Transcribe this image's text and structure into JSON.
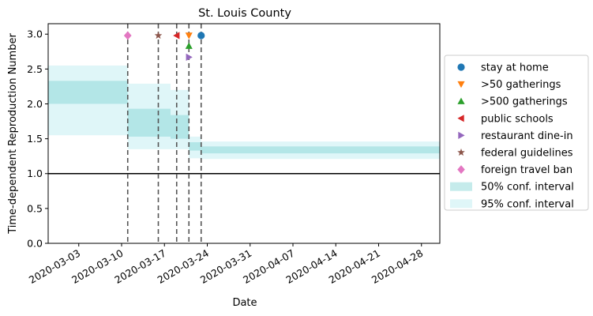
{
  "chart_data": {
    "type": "line",
    "title": "St. Louis County",
    "xlabel": "Date",
    "ylabel": "Time-dependent Reproduction Number",
    "x_range": [
      "2020-02-27",
      "2020-05-01"
    ],
    "ylim": [
      0.0,
      3.15
    ],
    "x_tick_labels": [
      "2020-03-03",
      "2020-03-10",
      "2020-03-17",
      "2020-03-24",
      "2020-03-31",
      "2020-04-07",
      "2020-04-14",
      "2020-04-21",
      "2020-04-28"
    ],
    "y_tick_labels": [
      "0.0",
      "0.5",
      "1.0",
      "1.5",
      "2.0",
      "2.5",
      "3.0"
    ],
    "y_ticks": [
      0.0,
      0.5,
      1.0,
      1.5,
      2.0,
      2.5,
      3.0
    ],
    "reference_line": {
      "y": 1.0,
      "color": "#000000"
    },
    "intervals": [
      {
        "start": "2020-02-27",
        "end": "2020-03-11",
        "ci50": [
          2.0,
          2.33
        ],
        "ci95": [
          1.55,
          2.55
        ]
      },
      {
        "start": "2020-03-11",
        "end": "2020-03-18",
        "ci50": [
          1.53,
          1.93
        ],
        "ci95": [
          1.35,
          2.29
        ]
      },
      {
        "start": "2020-03-18",
        "end": "2020-03-21",
        "ci50": [
          1.5,
          1.84
        ],
        "ci95": [
          1.35,
          2.2
        ]
      },
      {
        "start": "2020-03-21",
        "end": "2020-03-23",
        "ci50": [
          1.33,
          1.45
        ],
        "ci95": [
          1.22,
          1.53
        ]
      },
      {
        "start": "2020-03-23",
        "end": "2020-05-01",
        "ci50": [
          1.29,
          1.39
        ],
        "ci95": [
          1.21,
          1.46
        ]
      }
    ],
    "band_colors": {
      "ci50": "#7fd3d3",
      "ci95": "#b9ecef"
    },
    "interventions": [
      {
        "name": "stay at home",
        "date": "2020-03-23",
        "y": 2.98,
        "marker": "circle",
        "color": "#1f77b4"
      },
      {
        "name": ">50 gatherings",
        "date": "2020-03-21",
        "y": 2.98,
        "marker": "triangle-down",
        "color": "#ff7f0e"
      },
      {
        "name": ">500 gatherings",
        "date": "2020-03-21",
        "y": 2.83,
        "marker": "triangle-up",
        "color": "#2ca02c"
      },
      {
        "name": "public schools",
        "date": "2020-03-19",
        "y": 2.98,
        "marker": "triangle-left",
        "color": "#d62728"
      },
      {
        "name": "restaurant dine-in",
        "date": "2020-03-21",
        "y": 2.67,
        "marker": "triangle-right",
        "color": "#9467bd"
      },
      {
        "name": "federal guidelines",
        "date": "2020-03-16",
        "y": 2.98,
        "marker": "star",
        "color": "#8c564b"
      },
      {
        "name": "foreign travel ban",
        "date": "2020-03-11",
        "y": 2.98,
        "marker": "diamond",
        "color": "#e377c2"
      }
    ],
    "vertical_lines": [
      "2020-03-11",
      "2020-03-16",
      "2020-03-19",
      "2020-03-21",
      "2020-03-23"
    ],
    "legend": {
      "placement": "right",
      "entries": [
        {
          "label": "stay at home",
          "kind": "marker",
          "marker": "circle",
          "color": "#1f77b4"
        },
        {
          "label": ">50 gatherings",
          "kind": "marker",
          "marker": "triangle-down",
          "color": "#ff7f0e"
        },
        {
          "label": ">500 gatherings",
          "kind": "marker",
          "marker": "triangle-up",
          "color": "#2ca02c"
        },
        {
          "label": "public schools",
          "kind": "marker",
          "marker": "triangle-left",
          "color": "#d62728"
        },
        {
          "label": "restaurant dine-in",
          "kind": "marker",
          "marker": "triangle-right",
          "color": "#9467bd"
        },
        {
          "label": "federal guidelines",
          "kind": "marker",
          "marker": "star",
          "color": "#8c564b"
        },
        {
          "label": "foreign travel ban",
          "kind": "marker",
          "marker": "diamond",
          "color": "#e377c2"
        },
        {
          "label": "50% conf. interval",
          "kind": "patch",
          "color": "#7fd3d3"
        },
        {
          "label": "95% conf. interval",
          "kind": "patch",
          "color": "#b9ecef"
        }
      ]
    }
  }
}
